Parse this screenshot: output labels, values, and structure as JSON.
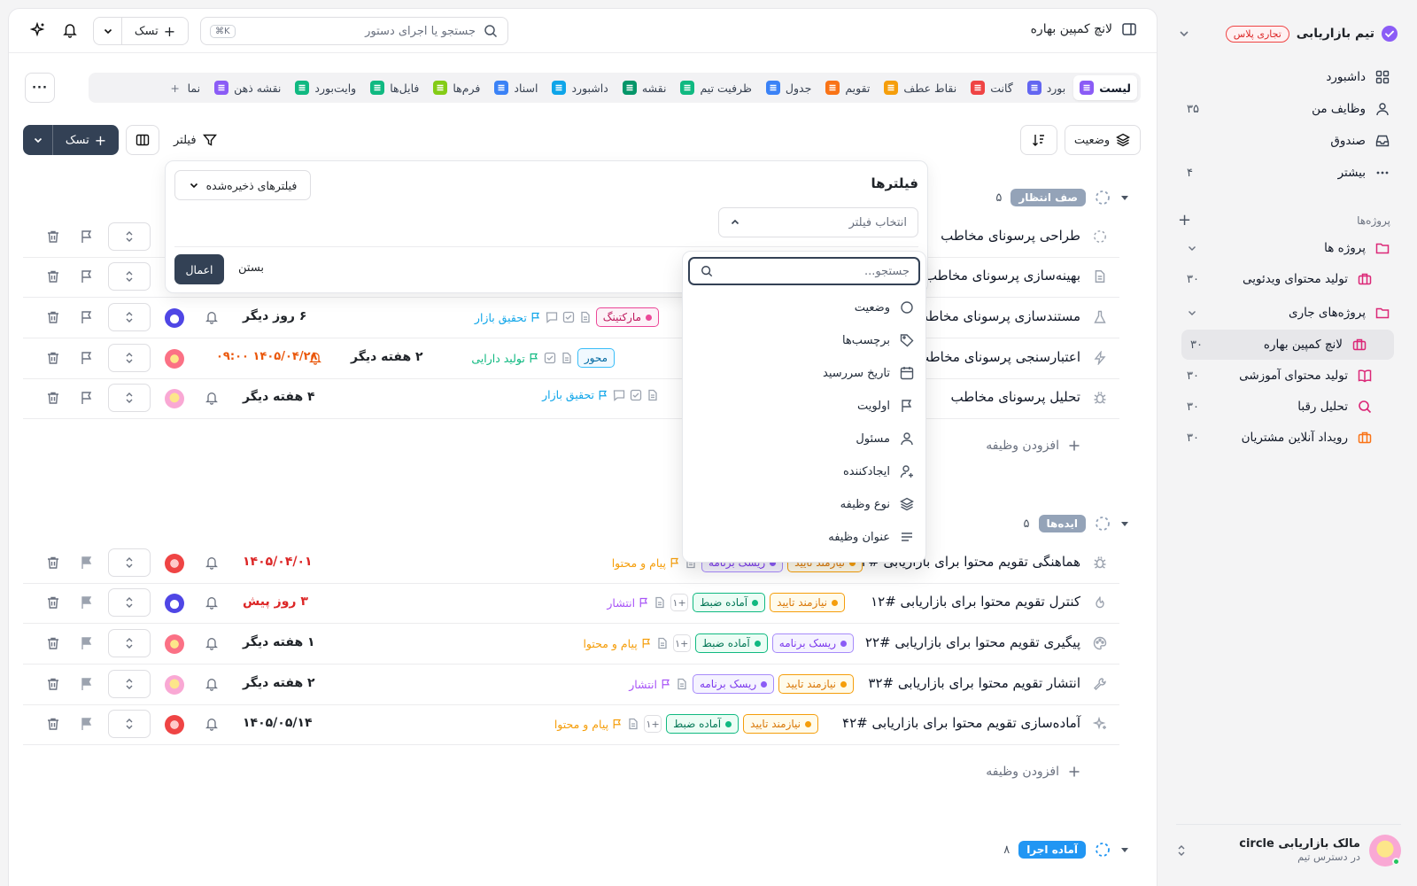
{
  "sidebar": {
    "team_name": "تیم بازاریابی",
    "plan_badge": "تجاری پلاس",
    "nav": [
      {
        "label": "داشبورد",
        "count": ""
      },
      {
        "label": "وظایف من",
        "count": "۳۵"
      },
      {
        "label": "صندوق",
        "count": ""
      },
      {
        "label": "بیشتر",
        "count": "۴"
      }
    ],
    "projects_section": "پروژه‌ها",
    "projects": [
      {
        "label": "پروژه ها",
        "count": ""
      },
      {
        "label": "تولید محتوای ویدئویی",
        "count": "۳۰"
      },
      {
        "label": "پروژه‌های جاری",
        "count": ""
      },
      {
        "label": "لانچ کمپین بهاره",
        "count": "۳۰"
      },
      {
        "label": "تولید محتوای آموزشی",
        "count": "۳۰"
      },
      {
        "label": "تحلیل رقبا",
        "count": "۳۰"
      },
      {
        "label": "رویداد آنلاین مشتریان",
        "count": "۳۰"
      }
    ],
    "user": {
      "name": "مالک بازاریابی circle",
      "subtitle": "در دسترس تیم"
    }
  },
  "topbar": {
    "title": "لانچ کمپین بهاره",
    "search_placeholder": "جستجو یا اجرای دستور",
    "search_kbd": "⌘K",
    "new_task": "تسک"
  },
  "views": [
    {
      "label": "لیست",
      "color": "#8b5cf6",
      "active": true
    },
    {
      "label": "بورد",
      "color": "#6366f1"
    },
    {
      "label": "گانت",
      "color": "#ef4444"
    },
    {
      "label": "نقاط عطف",
      "color": "#f59e0b"
    },
    {
      "label": "تقویم",
      "color": "#f97316"
    },
    {
      "label": "جدول",
      "color": "#3b82f6"
    },
    {
      "label": "ظرفیت تیم",
      "color": "#10b981"
    },
    {
      "label": "نقشه",
      "color": "#059669"
    },
    {
      "label": "داشبورد",
      "color": "#0ea5e9"
    },
    {
      "label": "اسناد",
      "color": "#3b82f6"
    },
    {
      "label": "فرم‌ها",
      "color": "#84cc16"
    },
    {
      "label": "فایل‌ها",
      "color": "#10b981"
    },
    {
      "label": "وایت‌بورد",
      "color": "#10b981"
    },
    {
      "label": "نقشه ذهن",
      "color": "#8b5cf6"
    },
    {
      "label": "نما",
      "color": "#6b7280"
    }
  ],
  "toolbar": {
    "status": "وضعیت",
    "filter": "فیلتر",
    "new_task": "تسک"
  },
  "groups": [
    {
      "name": "صف انتظار",
      "count": "۵",
      "rows": [
        {
          "title": "طراحی پرسونای مخاطب",
          "due": "",
          "tags": [],
          "project": ""
        },
        {
          "title": "بهینه‌سازی پرسونای مخاطب",
          "due": "",
          "tags": [],
          "project": ""
        },
        {
          "title": "مستندسازی پرسونای مخاطب",
          "due": "۶ روز دیگر",
          "tags": [
            "مارکتینگ"
          ],
          "project": "تحقیق بازار"
        },
        {
          "title": "اعتبارسنجی پرسونای مخاطب",
          "due": "۱۴۰۵/۰۴/۲۸ ۰۹:۰۰",
          "due2": "۲ هفته دیگر",
          "tags": [
            "محور"
          ],
          "project": "تولید دارایی"
        },
        {
          "title": "تحلیل پرسونای مخاطب",
          "due": "۴ هفته دیگر",
          "tags": [],
          "project": "تحقیق بازار"
        }
      ],
      "add": "افزودن وظیفه"
    },
    {
      "name": "ایده‌ها",
      "count": "۵",
      "rows": [
        {
          "title": "هماهنگی تقویم محتوا برای بازاریابی #۲",
          "due": "۱۴۰۵/۰۴/۰۱",
          "tags": [
            "نیازمند تایید",
            "ریسک برنامه"
          ],
          "project": "پیام و محتوا"
        },
        {
          "title": "کنترل تقویم محتوا برای بازاریابی #۱۲",
          "due": "۳ روز پیش",
          "tags": [
            "نیازمند تایید",
            "آماده ضبط"
          ],
          "plus": "+۱",
          "project": "انتشار"
        },
        {
          "title": "پیگیری تقویم محتوا برای بازاریابی #۲۲",
          "due": "۱ هفته دیگر",
          "tags": [
            "ریسک برنامه",
            "آماده ضبط"
          ],
          "plus": "+۱",
          "project": "پیام و محتوا"
        },
        {
          "title": "انتشار تقویم محتوا برای بازاریابی #۳۲",
          "due": "۲ هفته دیگر",
          "tags": [
            "نیازمند تایید",
            "ریسک برنامه"
          ],
          "project": "انتشار"
        },
        {
          "title": "آماده‌سازی تقویم محتوا برای بازاریابی #۴۲",
          "due": "۱۴۰۵/۰۵/۱۴",
          "tags": [
            "نیازمند تایید",
            "آماده ضبط"
          ],
          "plus": "+۱",
          "project": "پیام و محتوا"
        }
      ],
      "add": "افزودن وظیفه"
    },
    {
      "name": "آماده اجرا",
      "count": "۸"
    }
  ],
  "filter_panel": {
    "title": "فیلترها",
    "saved": "فیلترهای ذخیره‌شده",
    "select_placeholder": "انتخاب فیلتر",
    "apply": "اعمال",
    "close": "بستن",
    "search_placeholder": "جستجو...",
    "options": [
      "وضعیت",
      "برچسب‌ها",
      "تاریخ سررسید",
      "اولویت",
      "مسئول",
      "ایجادکننده",
      "نوع وظیفه",
      "عنوان وظیفه"
    ]
  }
}
